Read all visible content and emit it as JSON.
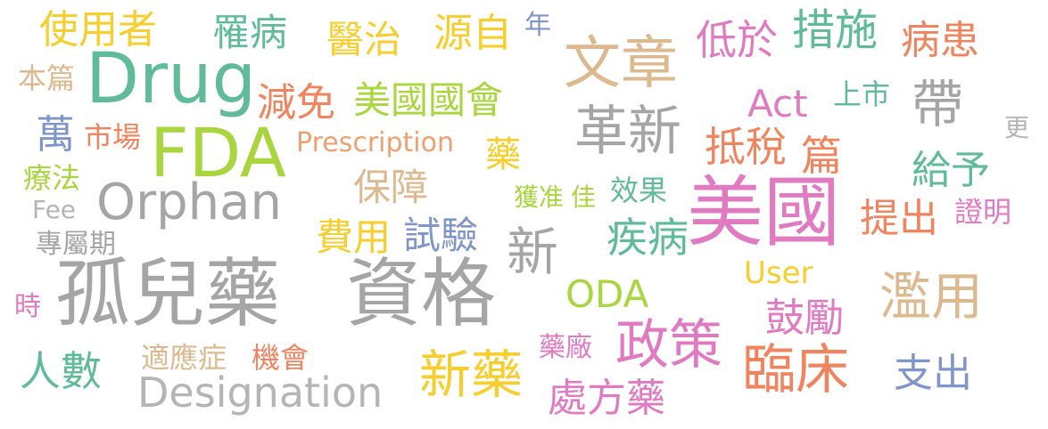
{
  "words": [
    {
      "text": "孤兒藥",
      "color": "#a5a5a5"
    },
    {
      "text": "資格",
      "color": "#a5a5a5"
    },
    {
      "text": "美國",
      "color": "#e07bc1"
    },
    {
      "text": "Drug",
      "color": "#5fbb99"
    },
    {
      "text": "FDA",
      "color": "#a9d53f"
    },
    {
      "text": "Orphan",
      "color": "#a5a5a5"
    },
    {
      "text": "Designation",
      "color": "#b5b5b5"
    },
    {
      "text": "文章",
      "color": "#dcb98f"
    },
    {
      "text": "革新",
      "color": "#a5a5a5"
    },
    {
      "text": "政策",
      "color": "#e07bc1"
    },
    {
      "text": "臨床",
      "color": "#f0845f"
    },
    {
      "text": "新藥",
      "color": "#f6cf2e"
    },
    {
      "text": "濫用",
      "color": "#dcb98f"
    },
    {
      "text": "帶",
      "color": "#a5a5a5"
    },
    {
      "text": "新",
      "color": "#a5a5a5"
    },
    {
      "text": "使用者",
      "color": "#f6cf2e"
    },
    {
      "text": "罹病",
      "color": "#5fbb99"
    },
    {
      "text": "醫治",
      "color": "#f6cf2e"
    },
    {
      "text": "源自",
      "color": "#f6cf2e"
    },
    {
      "text": "年",
      "color": "#8095c9"
    },
    {
      "text": "低於",
      "color": "#e07bc1"
    },
    {
      "text": "措施",
      "color": "#5fbb99"
    },
    {
      "text": "病患",
      "color": "#f0845f"
    },
    {
      "text": "本篇",
      "color": "#dcb98f"
    },
    {
      "text": "減免",
      "color": "#f0845f"
    },
    {
      "text": "美國國會",
      "color": "#a9d53f"
    },
    {
      "text": "Act",
      "color": "#e07bc1"
    },
    {
      "text": "上市",
      "color": "#5fbb99"
    },
    {
      "text": "萬",
      "color": "#8095c9"
    },
    {
      "text": "市場",
      "color": "#f0845f"
    },
    {
      "text": "Prescription",
      "color": "#f0a070"
    },
    {
      "text": "藥",
      "color": "#f6cf2e"
    },
    {
      "text": "抵稅",
      "color": "#f0845f"
    },
    {
      "text": "篇",
      "color": "#f0845f"
    },
    {
      "text": "更",
      "color": "#b5b5b5"
    },
    {
      "text": "療法",
      "color": "#a9d53f"
    },
    {
      "text": "保障",
      "color": "#dcb98f"
    },
    {
      "text": "獲准",
      "color": "#a9d53f"
    },
    {
      "text": "佳",
      "color": "#a9d53f"
    },
    {
      "text": "效果",
      "color": "#5fbb99"
    },
    {
      "text": "給予",
      "color": "#5fbb99"
    },
    {
      "text": "Fee",
      "color": "#b5b5b5"
    },
    {
      "text": "提出",
      "color": "#f0845f"
    },
    {
      "text": "證明",
      "color": "#e07bc1"
    },
    {
      "text": "專屬期",
      "color": "#a5a5a5"
    },
    {
      "text": "費用",
      "color": "#f6cf2e"
    },
    {
      "text": "試驗",
      "color": "#8095c9"
    },
    {
      "text": "疾病",
      "color": "#5fbb99"
    },
    {
      "text": "User",
      "color": "#f6cf2e"
    },
    {
      "text": "ODA",
      "color": "#a9d53f"
    },
    {
      "text": "時",
      "color": "#e07bc1"
    },
    {
      "text": "鼓勵",
      "color": "#e07bc1"
    },
    {
      "text": "藥廠",
      "color": "#e07bc1"
    },
    {
      "text": "人數",
      "color": "#5fbb99"
    },
    {
      "text": "適應症",
      "color": "#dcb98f"
    },
    {
      "text": "機會",
      "color": "#f0845f"
    },
    {
      "text": "支出",
      "color": "#8095c9"
    },
    {
      "text": "處方藥",
      "color": "#e07bc1"
    }
  ]
}
